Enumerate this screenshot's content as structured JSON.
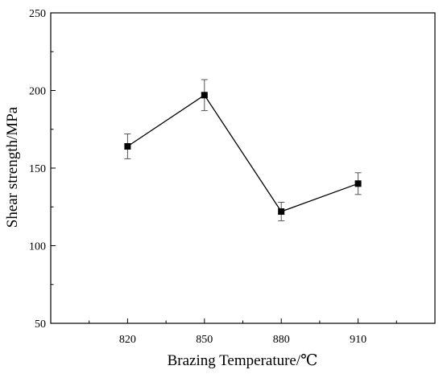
{
  "chart_data": {
    "type": "line",
    "title": "",
    "xlabel": "Brazing Temperature/℃",
    "ylabel": "Shear strength/MPa",
    "categories": [
      "820",
      "850",
      "880",
      "910"
    ],
    "x": [
      820,
      850,
      880,
      910
    ],
    "xlim": [
      790,
      940
    ],
    "ylim": [
      50,
      250
    ],
    "yticks": [
      50,
      100,
      150,
      200,
      250
    ],
    "grid": false,
    "legend": "none",
    "series": [
      {
        "values": [
          164,
          197,
          122,
          140
        ],
        "error": [
          8,
          10,
          6,
          7
        ],
        "marker": "square",
        "color": "#000000"
      }
    ]
  }
}
